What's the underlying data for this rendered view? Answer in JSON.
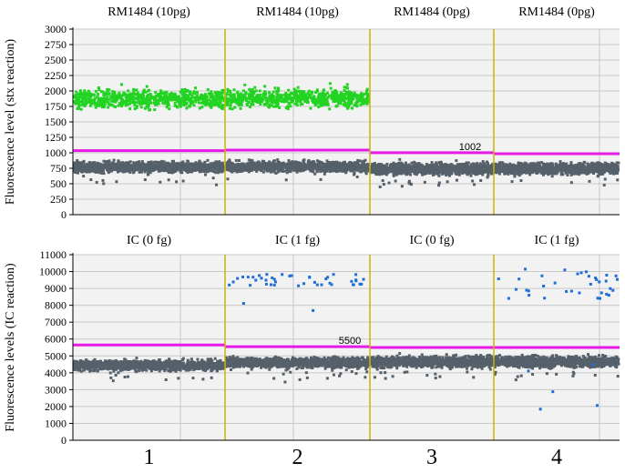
{
  "chart_data": [
    {
      "type": "scatter",
      "ylabel": "Fluorescence level (stx reaction)",
      "ylim": [
        0,
        3000
      ],
      "yticks": [
        "0",
        "250",
        "500",
        "750",
        "1000",
        "1250",
        "1500",
        "1750",
        "2000",
        "2250",
        "2500",
        "2750",
        "3000"
      ],
      "ytick_values": [
        0,
        250,
        500,
        750,
        1000,
        1250,
        1500,
        1750,
        2000,
        2250,
        2500,
        2750,
        3000
      ],
      "grid": true,
      "threshold_label": "1002",
      "threshold_color": "#e619e6",
      "panels": [
        {
          "title": "RM1484 (10pg)",
          "threshold": 1035,
          "series": [
            {
              "color": "#55606a",
              "center": 770,
              "spread": 70,
              "count": 1100,
              "role": "negative droplets"
            },
            {
              "color": "#22d322",
              "center": 1870,
              "spread": 120,
              "count": 650,
              "role": "positive droplets"
            }
          ]
        },
        {
          "title": "RM1484 (10pg)",
          "threshold": 1045,
          "series": [
            {
              "color": "#55606a",
              "center": 775,
              "spread": 70,
              "count": 1100,
              "role": "negative droplets"
            },
            {
              "color": "#22d322",
              "center": 1885,
              "spread": 120,
              "count": 650,
              "role": "positive droplets"
            }
          ]
        },
        {
          "title": "RM1484 (0pg)",
          "threshold": 1002,
          "series": [
            {
              "color": "#55606a",
              "center": 740,
              "spread": 70,
              "count": 1100,
              "role": "negative droplets"
            }
          ]
        },
        {
          "title": "RM1484 (0pg)",
          "threshold": 985,
          "series": [
            {
              "color": "#55606a",
              "center": 745,
              "spread": 70,
              "count": 1100,
              "role": "negative droplets"
            }
          ]
        }
      ]
    },
    {
      "type": "scatter",
      "ylabel": "Fluorescence levels (IC reaction)",
      "ylim": [
        0,
        11000
      ],
      "yticks": [
        "0",
        "1000",
        "2000",
        "3000",
        "4000",
        "5000",
        "6000",
        "7000",
        "8000",
        "9000",
        "10000",
        "11000"
      ],
      "ytick_values": [
        0,
        1000,
        2000,
        3000,
        4000,
        5000,
        6000,
        7000,
        8000,
        9000,
        10000,
        11000
      ],
      "grid": true,
      "threshold_label": "5500",
      "threshold_color": "#e619e6",
      "panels": [
        {
          "title": "IC (0 fg)",
          "threshold": 5650,
          "series": [
            {
              "color": "#55606a",
              "center": 4450,
              "spread": 250,
              "count": 1100,
              "role": "negative droplets"
            }
          ]
        },
        {
          "title": "IC (1 fg)",
          "threshold": 5550,
          "series": [
            {
              "color": "#55606a",
              "center": 4600,
              "spread": 250,
              "count": 1100,
              "role": "negative droplets"
            },
            {
              "color": "#1f6fd6",
              "center": 9500,
              "spread": 350,
              "count": 44,
              "role": "positive droplets"
            }
          ]
        },
        {
          "title": "IC (0 fg)",
          "threshold": 5500,
          "series": [
            {
              "color": "#55606a",
              "center": 4650,
              "spread": 250,
              "count": 1100,
              "role": "negative droplets"
            }
          ]
        },
        {
          "title": "IC (1 fg)",
          "threshold": 5500,
          "series": [
            {
              "color": "#55606a",
              "center": 4650,
              "spread": 250,
              "count": 1100,
              "role": "negative droplets"
            },
            {
              "color": "#1f6fd6",
              "center": 9300,
              "spread": 900,
              "count": 40,
              "role": "positive droplets"
            }
          ]
        }
      ]
    }
  ],
  "wells": [
    "1",
    "2",
    "3",
    "4"
  ],
  "colors": {
    "panel_background": "#f2f2f2",
    "gridline": "#c8c8c8",
    "well_divider": "#c8b400",
    "axis": "#000000"
  }
}
